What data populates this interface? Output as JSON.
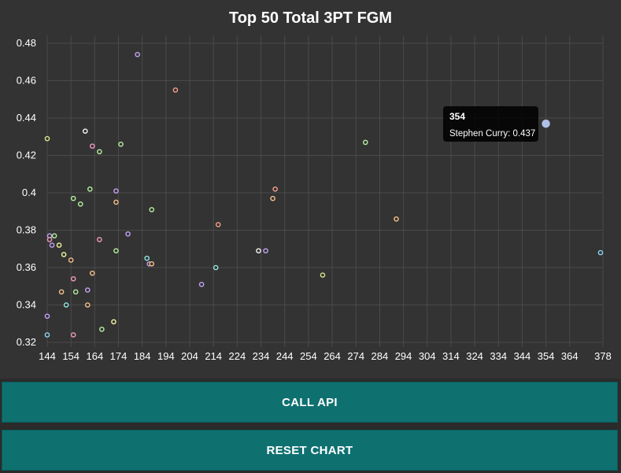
{
  "chart_data": {
    "type": "scatter",
    "title": "Top 50 Total 3PT FGM",
    "xlabel": "",
    "ylabel": "",
    "xlim": [
      144,
      378
    ],
    "ylim": [
      0.32,
      0.48
    ],
    "x_ticks": [
      "144",
      "154",
      "164",
      "174",
      "184",
      "194",
      "204",
      "214",
      "224",
      "234",
      "244",
      "254",
      "264",
      "274",
      "284",
      "294",
      "304",
      "314",
      "324",
      "334",
      "344",
      "354",
      "364",
      "378"
    ],
    "y_ticks": [
      "0.48",
      "0.46",
      "0.44",
      "0.42",
      "0.4",
      "0.38",
      "0.36",
      "0.34",
      "0.32"
    ],
    "grid": true,
    "legend": "none",
    "points": [
      {
        "x": 144,
        "y": 0.324,
        "color": "#8fd3f4"
      },
      {
        "x": 144,
        "y": 0.334,
        "color": "#c4a3f7"
      },
      {
        "x": 144,
        "y": 0.429,
        "color": "#d9e58a"
      },
      {
        "x": 145,
        "y": 0.377,
        "color": "#c4a3f7"
      },
      {
        "x": 145,
        "y": 0.375,
        "color": "#f49ac2"
      },
      {
        "x": 146,
        "y": 0.372,
        "color": "#c4a3f7"
      },
      {
        "x": 147,
        "y": 0.377,
        "color": "#b7f0a0"
      },
      {
        "x": 149,
        "y": 0.372,
        "color": "#f6f6a3"
      },
      {
        "x": 150,
        "y": 0.347,
        "color": "#f7c08a"
      },
      {
        "x": 151,
        "y": 0.367,
        "color": "#f6f6a3"
      },
      {
        "x": 152,
        "y": 0.34,
        "color": "#8fe8e0"
      },
      {
        "x": 154,
        "y": 0.364,
        "color": "#f7c08a"
      },
      {
        "x": 155,
        "y": 0.354,
        "color": "#f49ac2"
      },
      {
        "x": 155,
        "y": 0.324,
        "color": "#f49ac2"
      },
      {
        "x": 155,
        "y": 0.397,
        "color": "#b7f0a0"
      },
      {
        "x": 156,
        "y": 0.347,
        "color": "#b7f0a0"
      },
      {
        "x": 158,
        "y": 0.394,
        "color": "#b7f0a0"
      },
      {
        "x": 160,
        "y": 0.433,
        "color": "#f6f6f6"
      },
      {
        "x": 161,
        "y": 0.348,
        "color": "#c4a3f7"
      },
      {
        "x": 161,
        "y": 0.34,
        "color": "#f7c08a"
      },
      {
        "x": 162,
        "y": 0.402,
        "color": "#b7f0a0"
      },
      {
        "x": 163,
        "y": 0.425,
        "color": "#f49ac2"
      },
      {
        "x": 163,
        "y": 0.357,
        "color": "#f7c08a"
      },
      {
        "x": 166,
        "y": 0.422,
        "color": "#b7f0a0"
      },
      {
        "x": 166,
        "y": 0.375,
        "color": "#f49ac2"
      },
      {
        "x": 167,
        "y": 0.327,
        "color": "#b7f0a0"
      },
      {
        "x": 172,
        "y": 0.331,
        "color": "#f6f6a3"
      },
      {
        "x": 173,
        "y": 0.401,
        "color": "#c4a3f7"
      },
      {
        "x": 173,
        "y": 0.395,
        "color": "#f7c08a"
      },
      {
        "x": 173,
        "y": 0.369,
        "color": "#b7f0a0"
      },
      {
        "x": 175,
        "y": 0.426,
        "color": "#b7f0a0"
      },
      {
        "x": 178,
        "y": 0.378,
        "color": "#c4a3f7"
      },
      {
        "x": 182,
        "y": 0.474,
        "color": "#c4a3f7"
      },
      {
        "x": 186,
        "y": 0.365,
        "color": "#8fe8e0"
      },
      {
        "x": 187,
        "y": 0.362,
        "color": "#c4a3f7"
      },
      {
        "x": 188,
        "y": 0.391,
        "color": "#b7f0a0"
      },
      {
        "x": 188,
        "y": 0.362,
        "color": "#f7c08a"
      },
      {
        "x": 198,
        "y": 0.455,
        "color": "#f6a08a"
      },
      {
        "x": 209,
        "y": 0.351,
        "color": "#c4a3f7"
      },
      {
        "x": 215,
        "y": 0.36,
        "color": "#8fe8e0"
      },
      {
        "x": 216,
        "y": 0.383,
        "color": "#f6a08a"
      },
      {
        "x": 233,
        "y": 0.369,
        "color": "#f6f6f6"
      },
      {
        "x": 236,
        "y": 0.369,
        "color": "#c4a3f7"
      },
      {
        "x": 239,
        "y": 0.397,
        "color": "#f7c08a"
      },
      {
        "x": 240,
        "y": 0.402,
        "color": "#f6a08a"
      },
      {
        "x": 260,
        "y": 0.356,
        "color": "#d9e58a"
      },
      {
        "x": 278,
        "y": 0.427,
        "color": "#b7f0a0"
      },
      {
        "x": 291,
        "y": 0.386,
        "color": "#f7c08a"
      },
      {
        "x": 354,
        "y": 0.437,
        "color": "#aebfe8",
        "hovered": true
      },
      {
        "x": 377,
        "y": 0.368,
        "color": "#8fd3f4"
      }
    ]
  },
  "tooltip": {
    "title": "354",
    "body": "Stephen Curry: 0.437"
  },
  "buttons": {
    "call_api": "CALL API",
    "reset_chart": "RESET CHART"
  },
  "colors": {
    "panel_bg": "#333333",
    "grid": "#4a4a4a",
    "tick_text": "#ffffff",
    "button_bg": "#0f7070"
  }
}
